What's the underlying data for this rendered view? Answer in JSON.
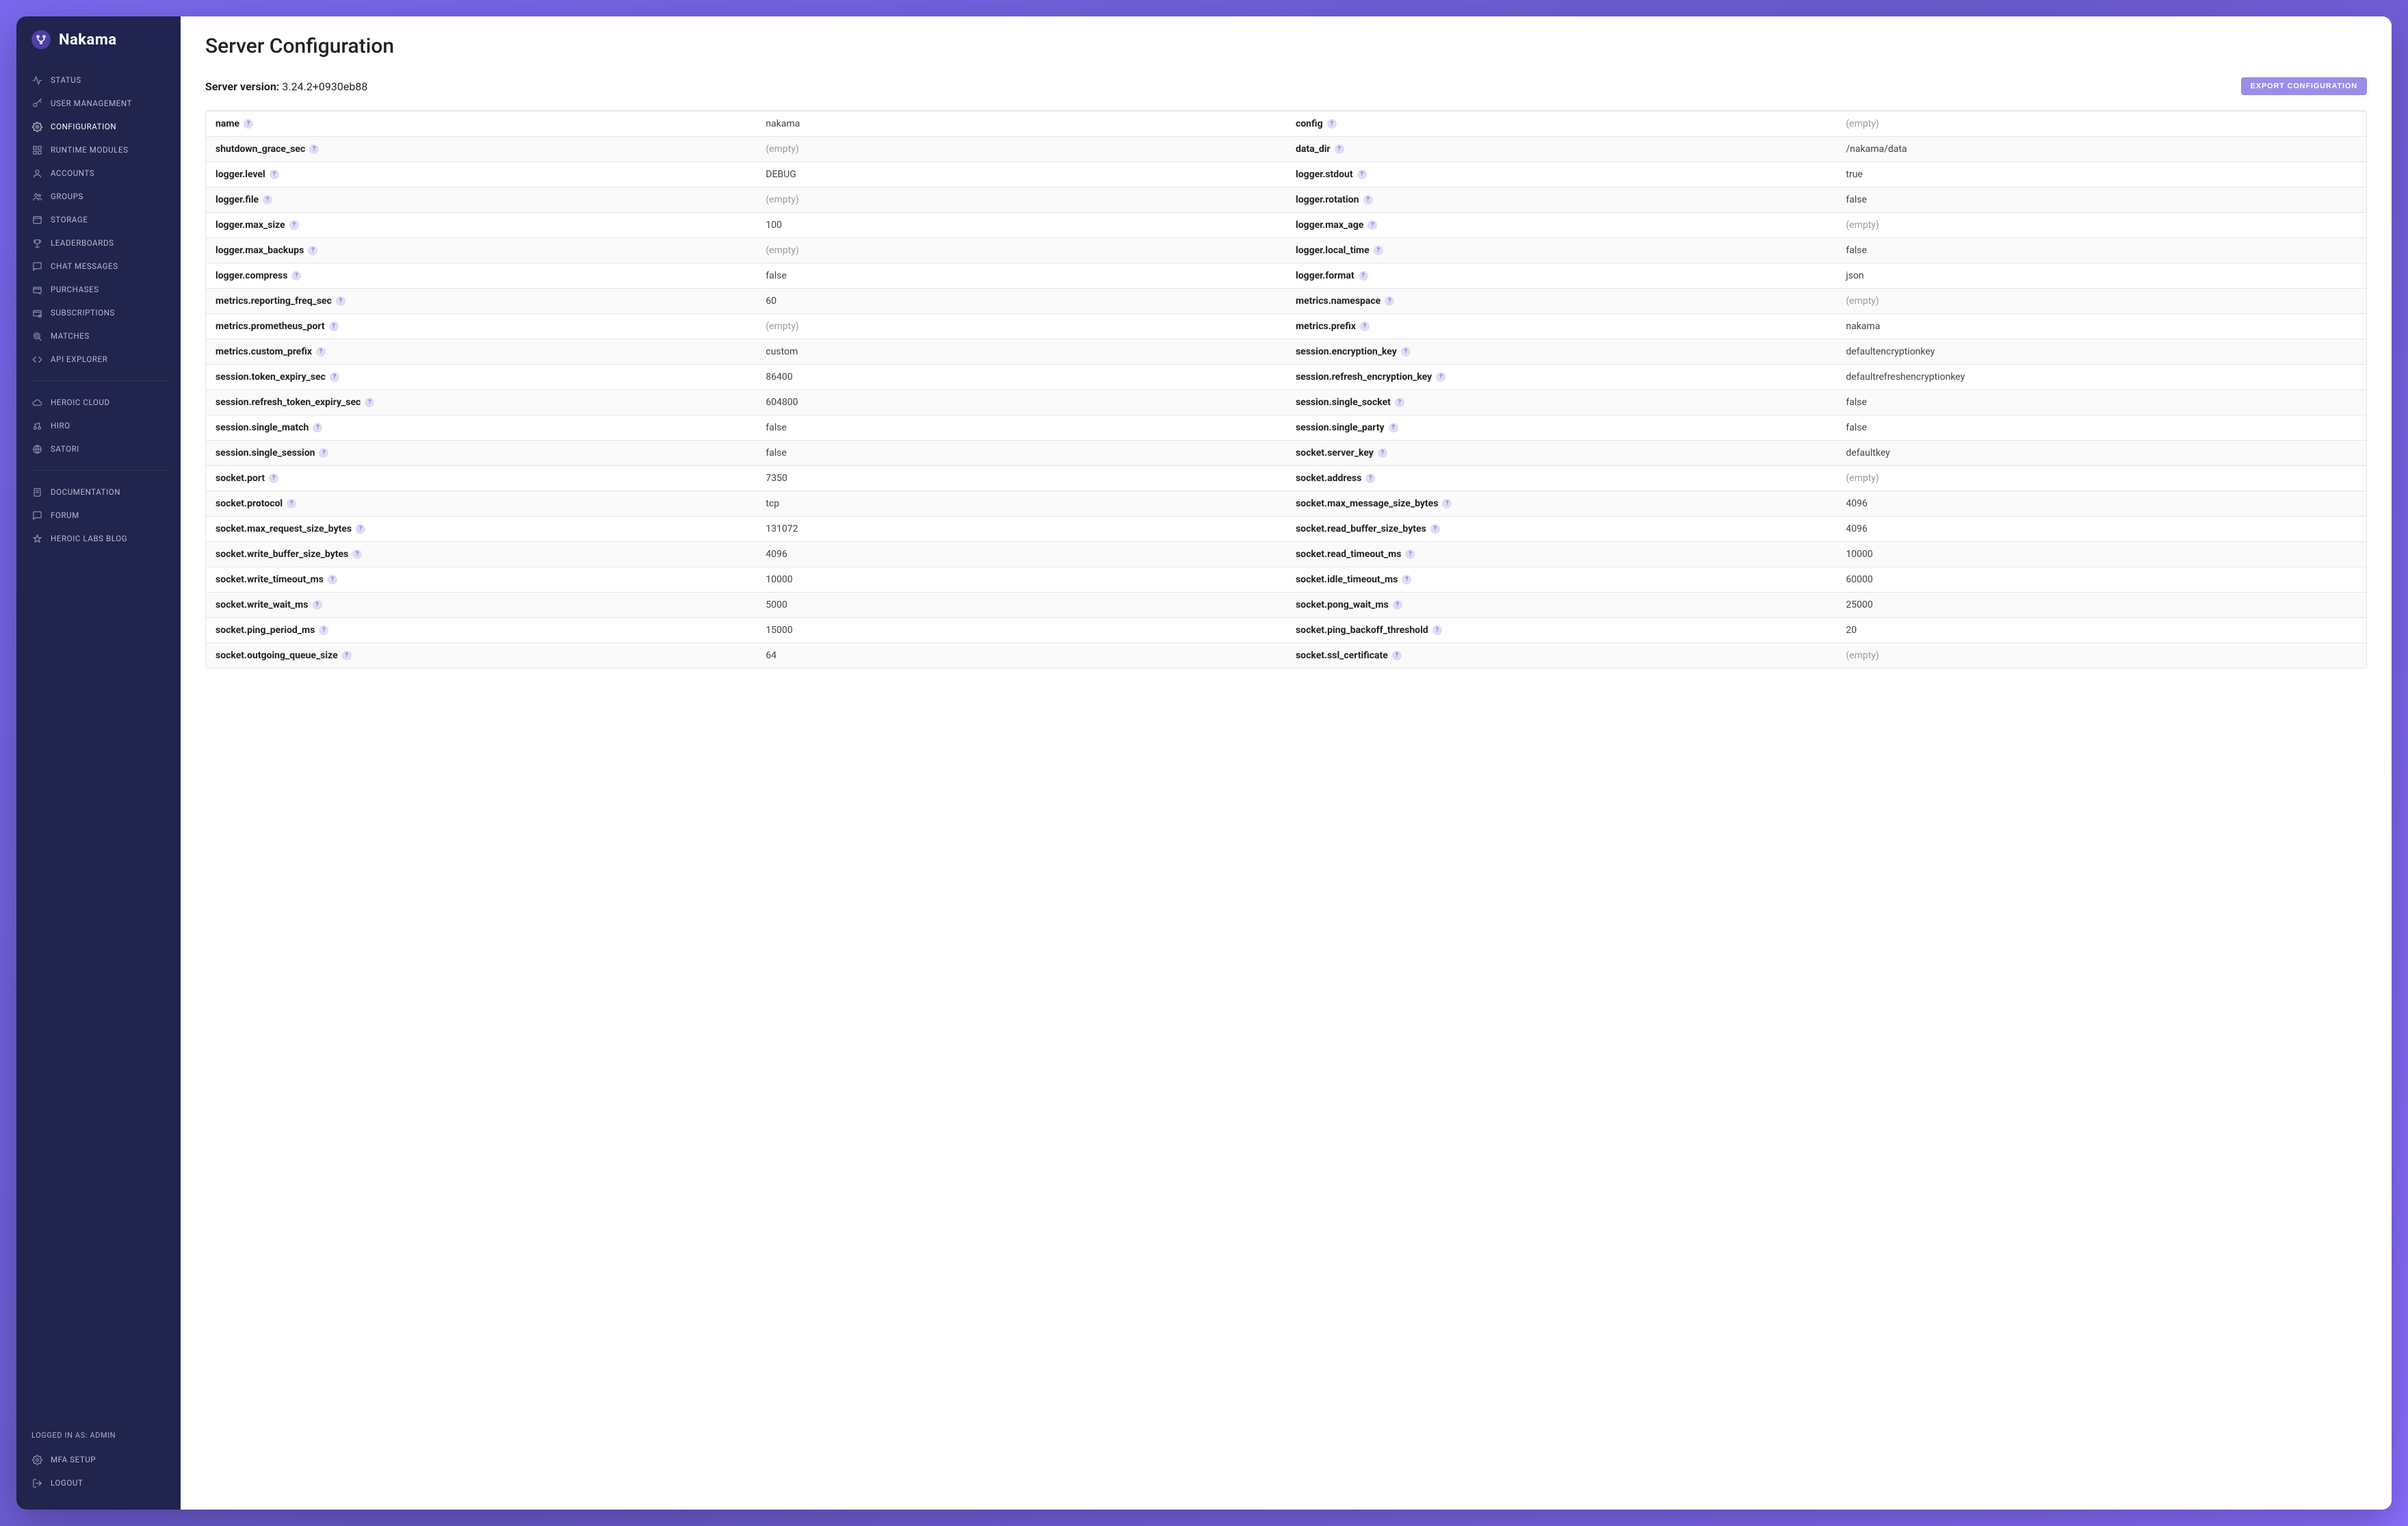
{
  "brand": {
    "name": "Nakama"
  },
  "sidebar": {
    "main_items": [
      {
        "label": "Status",
        "icon": "activity"
      },
      {
        "label": "User Management",
        "icon": "key"
      },
      {
        "label": "Configuration",
        "icon": "gear",
        "active": true
      },
      {
        "label": "Runtime Modules",
        "icon": "modules"
      },
      {
        "label": "Accounts",
        "icon": "person"
      },
      {
        "label": "Groups",
        "icon": "people"
      },
      {
        "label": "Storage",
        "icon": "storage"
      },
      {
        "label": "Leaderboards",
        "icon": "trophy"
      },
      {
        "label": "Chat Messages",
        "icon": "chat"
      },
      {
        "label": "Purchases",
        "icon": "purchase"
      },
      {
        "label": "Subscriptions",
        "icon": "subscription"
      },
      {
        "label": "Matches",
        "icon": "matches"
      },
      {
        "label": "API Explorer",
        "icon": "code"
      }
    ],
    "external_items": [
      {
        "label": "Heroic Cloud",
        "icon": "cloud"
      },
      {
        "label": "Hiro",
        "icon": "hiro"
      },
      {
        "label": "Satori",
        "icon": "satori"
      }
    ],
    "doc_items": [
      {
        "label": "Documentation",
        "icon": "doc"
      },
      {
        "label": "Forum",
        "icon": "forum"
      },
      {
        "label": "Heroic Labs Blog",
        "icon": "blog"
      }
    ],
    "logged_in_as": "LOGGED IN AS: ADMIN",
    "footer_items": [
      {
        "label": "MFA Setup",
        "icon": "gear"
      },
      {
        "label": "Logout",
        "icon": "logout"
      }
    ]
  },
  "page": {
    "title": "Server Configuration",
    "version_label": "Server version:",
    "version_value": "3.24.2+0930eb88",
    "export_button": "EXPORT CONFIGURATION"
  },
  "config_rows": [
    {
      "k1": "name",
      "v1": "nakama",
      "k2": "config",
      "v2": ""
    },
    {
      "k1": "shutdown_grace_sec",
      "v1": "",
      "k2": "data_dir",
      "v2": "/nakama/data"
    },
    {
      "k1": "logger.level",
      "v1": "DEBUG",
      "k2": "logger.stdout",
      "v2": "true"
    },
    {
      "k1": "logger.file",
      "v1": "",
      "k2": "logger.rotation",
      "v2": "false"
    },
    {
      "k1": "logger.max_size",
      "v1": "100",
      "k2": "logger.max_age",
      "v2": ""
    },
    {
      "k1": "logger.max_backups",
      "v1": "",
      "k2": "logger.local_time",
      "v2": "false"
    },
    {
      "k1": "logger.compress",
      "v1": "false",
      "k2": "logger.format",
      "v2": "json"
    },
    {
      "k1": "metrics.reporting_freq_sec",
      "v1": "60",
      "k2": "metrics.namespace",
      "v2": ""
    },
    {
      "k1": "metrics.prometheus_port",
      "v1": "",
      "k2": "metrics.prefix",
      "v2": "nakama"
    },
    {
      "k1": "metrics.custom_prefix",
      "v1": "custom",
      "k2": "session.encryption_key",
      "v2": "defaultencryptionkey"
    },
    {
      "k1": "session.token_expiry_sec",
      "v1": "86400",
      "k2": "session.refresh_encryption_key",
      "v2": "defaultrefreshencryptionkey"
    },
    {
      "k1": "session.refresh_token_expiry_sec",
      "v1": "604800",
      "k2": "session.single_socket",
      "v2": "false"
    },
    {
      "k1": "session.single_match",
      "v1": "false",
      "k2": "session.single_party",
      "v2": "false"
    },
    {
      "k1": "session.single_session",
      "v1": "false",
      "k2": "socket.server_key",
      "v2": "defaultkey"
    },
    {
      "k1": "socket.port",
      "v1": "7350",
      "k2": "socket.address",
      "v2": ""
    },
    {
      "k1": "socket.protocol",
      "v1": "tcp",
      "k2": "socket.max_message_size_bytes",
      "v2": "4096"
    },
    {
      "k1": "socket.max_request_size_bytes",
      "v1": "131072",
      "k2": "socket.read_buffer_size_bytes",
      "v2": "4096"
    },
    {
      "k1": "socket.write_buffer_size_bytes",
      "v1": "4096",
      "k2": "socket.read_timeout_ms",
      "v2": "10000"
    },
    {
      "k1": "socket.write_timeout_ms",
      "v1": "10000",
      "k2": "socket.idle_timeout_ms",
      "v2": "60000"
    },
    {
      "k1": "socket.write_wait_ms",
      "v1": "5000",
      "k2": "socket.pong_wait_ms",
      "v2": "25000"
    },
    {
      "k1": "socket.ping_period_ms",
      "v1": "15000",
      "k2": "socket.ping_backoff_threshold",
      "v2": "20"
    },
    {
      "k1": "socket.outgoing_queue_size",
      "v1": "64",
      "k2": "socket.ssl_certificate",
      "v2": ""
    }
  ],
  "empty_text": "(empty)",
  "colors": {
    "sidebar_bg": "#21244d",
    "accent": "#9b8ce8",
    "help_badge_bg": "#e0dcf5",
    "help_badge_fg": "#7a6de0",
    "border": "#e5e5e8"
  }
}
